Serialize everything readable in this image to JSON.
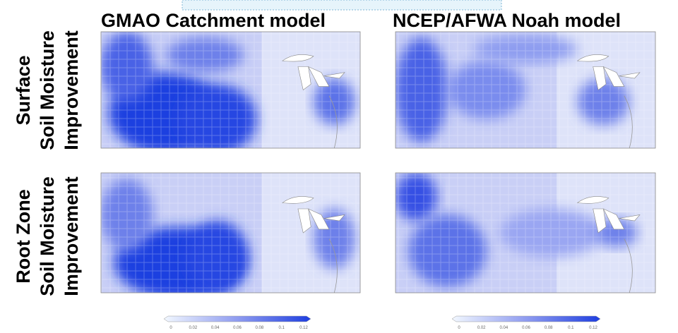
{
  "columns": [
    "GMAO Catchment model",
    "NCEP/AFWA Noah model"
  ],
  "rows": [
    [
      "Surface",
      "Soil Moisture",
      "Improvement"
    ],
    [
      "Root Zone",
      "Soil Moisture",
      "Improvement"
    ]
  ],
  "colorbar": {
    "ticks": [
      0,
      0.02,
      0.04,
      0.06,
      0.08,
      0.1,
      0.12
    ]
  }
}
